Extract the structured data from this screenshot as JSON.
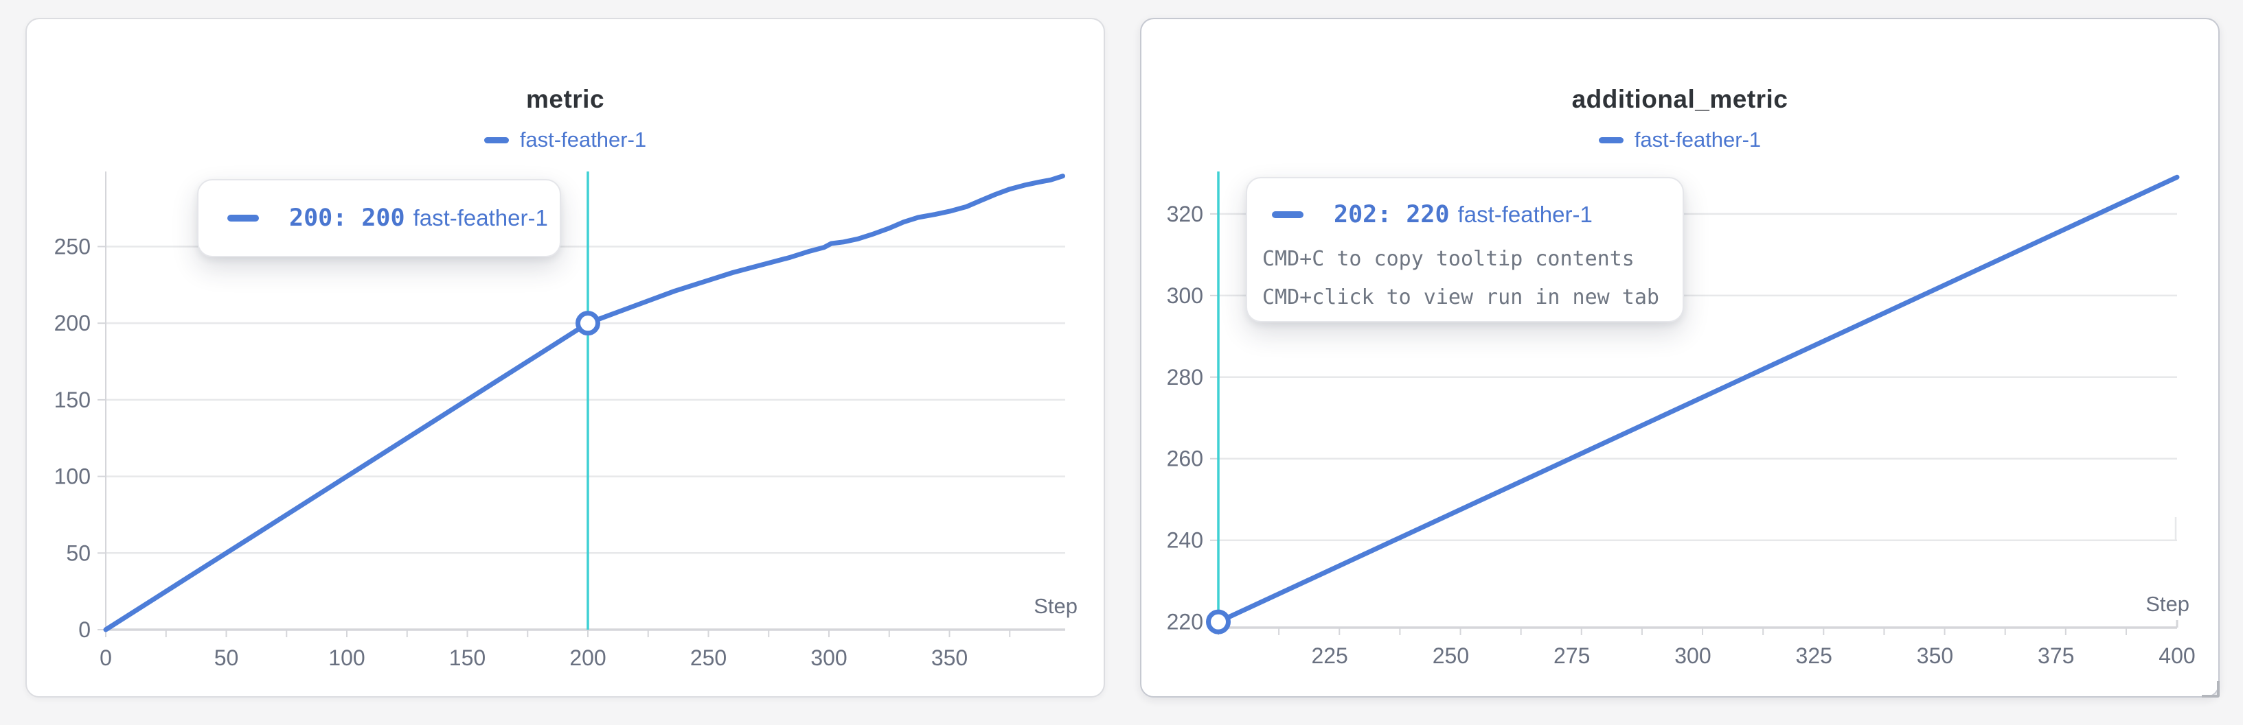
{
  "colors": {
    "run_line": "#4d7dd8",
    "run_text": "#4a76d0",
    "crosshair": "#3fd0d4",
    "gridline": "#e7e8ea",
    "axis_domain": "#d5d6da",
    "tick_label": "#697080",
    "title_text": "#2f3338",
    "tooltip_hint_text": "#6f7682",
    "panel_background": "#ffffff",
    "page_background": "#f5f5f6"
  },
  "chart_data": [
    {
      "type": "line",
      "title": "metric",
      "legend": [
        "fast-feather-1"
      ],
      "legend_position": "top-center",
      "xlabel": "Step",
      "grid": "horizontal",
      "xlim": [
        0,
        398
      ],
      "ylim": [
        0,
        299
      ],
      "x_ticks": [
        0,
        50,
        100,
        150,
        200,
        250,
        300,
        350
      ],
      "x_minor_tick_step": 25,
      "y_ticks": [
        0,
        50,
        100,
        150,
        200,
        250
      ],
      "crosshair_x": 200,
      "hover_point": [
        200,
        200
      ],
      "tooltip": {
        "label": "200: 200",
        "run": "fast-feather-1"
      },
      "series": [
        {
          "name": "fast-feather-1",
          "color": "#4d7dd8",
          "points": [
            [
              0,
              0
            ],
            [
              20,
              20
            ],
            [
              40,
              40
            ],
            [
              60,
              60
            ],
            [
              80,
              80
            ],
            [
              100,
              100
            ],
            [
              120,
              120
            ],
            [
              140,
              140
            ],
            [
              160,
              160
            ],
            [
              180,
              180
            ],
            [
              200,
              200
            ],
            [
              212,
              207
            ],
            [
              224,
              214
            ],
            [
              236,
              221
            ],
            [
              248,
              227
            ],
            [
              260,
              233
            ],
            [
              272,
              238
            ],
            [
              284,
              243
            ],
            [
              292,
              247
            ],
            [
              298,
              249.5
            ],
            [
              301,
              252
            ],
            [
              306,
              253
            ],
            [
              312,
              255
            ],
            [
              318,
              258
            ],
            [
              325,
              262
            ],
            [
              331,
              266
            ],
            [
              337,
              269
            ],
            [
              344,
              271
            ],
            [
              350,
              273
            ],
            [
              357,
              276
            ],
            [
              363,
              280
            ],
            [
              369,
              284
            ],
            [
              375,
              287.5
            ],
            [
              381,
              290
            ],
            [
              387,
              292
            ],
            [
              392,
              293.5
            ],
            [
              397,
              296
            ]
          ]
        }
      ]
    },
    {
      "type": "line",
      "title": "additional_metric",
      "legend": [
        "fast-feather-1"
      ],
      "legend_position": "top-center",
      "xlabel": "Step",
      "grid": "horizontal",
      "xlim": [
        202,
        400
      ],
      "ylim": [
        218.6,
        330.4
      ],
      "x_ticks": [
        225,
        250,
        275,
        300,
        325,
        350,
        375,
        400
      ],
      "x_minor_tick_step": 12.5,
      "y_ticks": [
        220,
        240,
        260,
        280,
        300,
        320
      ],
      "crosshair_x": 202,
      "hover_point": [
        202,
        220
      ],
      "tooltip": {
        "label": "202: 220",
        "run": "fast-feather-1",
        "hints": [
          "CMD+C to copy tooltip contents",
          "CMD+click to view run in new tab"
        ]
      },
      "series": [
        {
          "name": "fast-feather-1",
          "color": "#4d7dd8",
          "points": [
            [
              202,
              220
            ],
            [
              400,
              329
            ]
          ]
        }
      ]
    }
  ]
}
